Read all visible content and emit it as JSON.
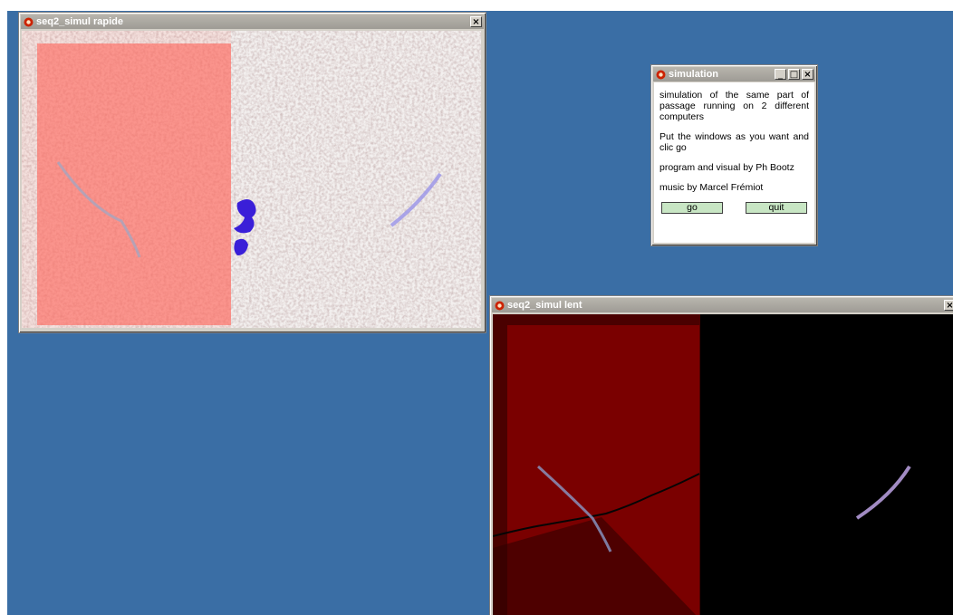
{
  "windows": {
    "rapide": {
      "title": "seq2_simul rapide",
      "close_label": "×"
    },
    "lent": {
      "title": "seq2_simul lent",
      "close_label": "×"
    },
    "simulation": {
      "title": "simulation",
      "minimize_label": "_",
      "maximize_label": "□",
      "close_label": "×",
      "paragraphs": [
        "simulation of the same part of passage running on 2 different computers",
        "Put the windows as you want and clic go",
        "program and visual by Ph Bootz",
        "music by Marcel Frémiot"
      ],
      "go_label": "go",
      "quit_label": "quit"
    }
  },
  "colors": {
    "desktop": "#3a6ea5",
    "overlay_red": "#ff6b60",
    "dark_red": "#7a0000",
    "button_green": "#c8e6c4"
  },
  "icons": [
    "app-icon",
    "minimize-icon",
    "maximize-icon",
    "close-icon"
  ]
}
